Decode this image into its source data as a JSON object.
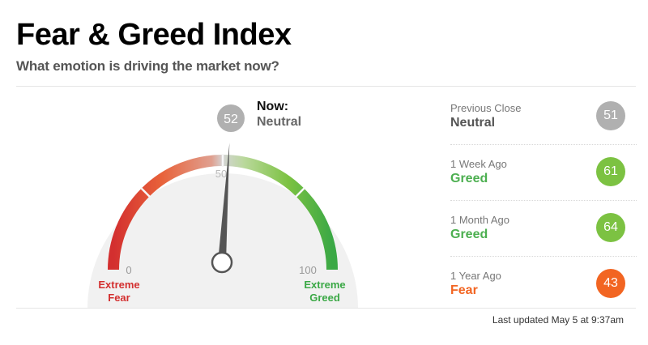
{
  "header": {
    "title": "Fear & Greed Index",
    "subtitle": "What emotion is driving the market now?"
  },
  "gauge": {
    "value": 52,
    "min_label": "0",
    "mid_label": "50",
    "max_label": "100",
    "left_label_line1": "Extreme",
    "left_label_line2": "Fear",
    "right_label_line1": "Extreme",
    "right_label_line2": "Greed",
    "now_label": "Now:",
    "now_value": "Neutral"
  },
  "history": [
    {
      "label": "Previous Close",
      "value": "Neutral",
      "score": "51",
      "color": "#b0b0b0",
      "text_color": "#555555"
    },
    {
      "label": "1 Week Ago",
      "value": "Greed",
      "score": "61",
      "color": "#7cc242",
      "text_color": "#4caf50"
    },
    {
      "label": "1 Month Ago",
      "value": "Greed",
      "score": "64",
      "color": "#7cc242",
      "text_color": "#4caf50"
    },
    {
      "label": "1 Year Ago",
      "value": "Fear",
      "score": "43",
      "color": "#f26522",
      "text_color": "#f26522"
    }
  ],
  "footer": {
    "last_updated": "Last updated May 5 at 9:37am"
  },
  "colors": {
    "extreme_fear": "#d32f2f",
    "fear": "#f26522",
    "neutral": "#b0b0b0",
    "greed": "#7cc242",
    "extreme_greed": "#3aa845"
  }
}
